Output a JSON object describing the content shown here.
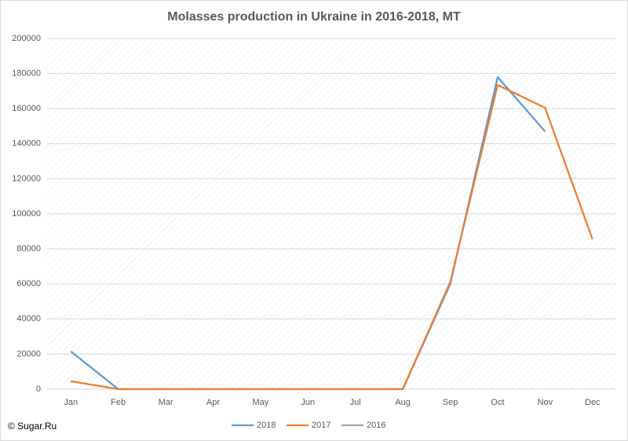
{
  "chart_data": {
    "type": "line",
    "title": "Molasses production in Ukraine in 2016-2018, MT",
    "categories": [
      "Jan",
      "Feb",
      "Mar",
      "Apr",
      "May",
      "Jun",
      "Jul",
      "Aug",
      "Sep",
      "Oct",
      "Nov",
      "Dec"
    ],
    "series": [
      {
        "name": "2018",
        "color": "#5b9bd5",
        "values": [
          21500,
          0,
          0,
          0,
          0,
          0,
          0,
          0,
          60000,
          178000,
          147000,
          null
        ]
      },
      {
        "name": "2017",
        "color": "#ed7d31",
        "values": [
          4500,
          0,
          0,
          0,
          0,
          0,
          0,
          0,
          61000,
          173500,
          160500,
          85500
        ]
      },
      {
        "name": "2016",
        "color": "#a5a5a5",
        "values": [
          null,
          null,
          null,
          null,
          null,
          null,
          null,
          null,
          null,
          null,
          null,
          null
        ]
      }
    ],
    "ylim": [
      0,
      200000
    ],
    "yticks": [
      0,
      20000,
      40000,
      60000,
      80000,
      100000,
      120000,
      140000,
      160000,
      180000,
      200000
    ],
    "grid": true,
    "legend": "bottom",
    "source": "© Sugar.Ru"
  }
}
